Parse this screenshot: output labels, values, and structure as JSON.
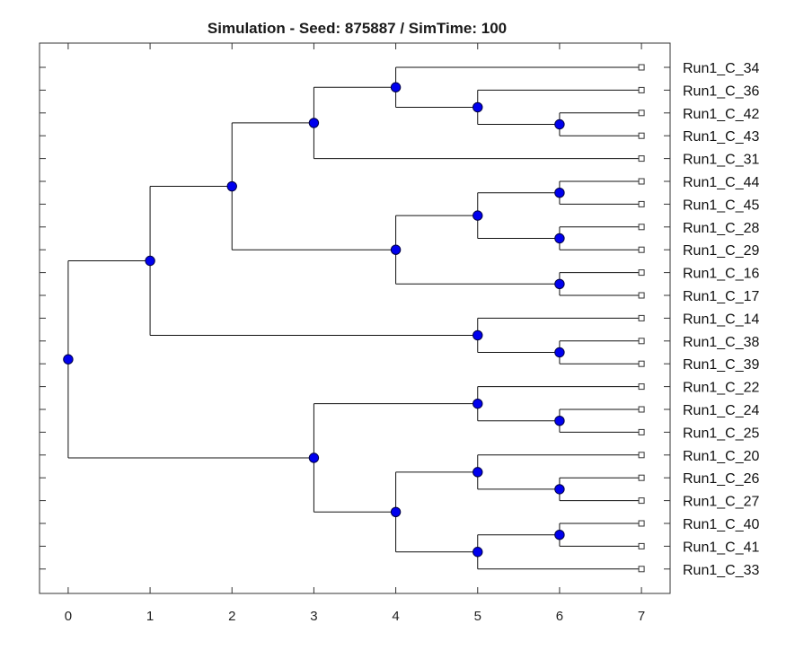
{
  "figure": {
    "title": "Simulation - Seed: 875887 / SimTime: 100"
  },
  "chart_data": {
    "type": "dendrogram",
    "title": "Simulation - Seed: 875887 / SimTime: 100",
    "x_ticks": [
      "0",
      "1",
      "2",
      "3",
      "4",
      "5",
      "6",
      "7"
    ],
    "xlim": [
      -0.35,
      7.35
    ],
    "leaves": [
      "Run1_C_34",
      "Run1_C_36",
      "Run1_C_42",
      "Run1_C_43",
      "Run1_C_31",
      "Run1_C_44",
      "Run1_C_45",
      "Run1_C_28",
      "Run1_C_29",
      "Run1_C_16",
      "Run1_C_17",
      "Run1_C_14",
      "Run1_C_38",
      "Run1_C_39",
      "Run1_C_22",
      "Run1_C_24",
      "Run1_C_25",
      "Run1_C_20",
      "Run1_C_26",
      "Run1_C_27",
      "Run1_C_40",
      "Run1_C_41",
      "Run1_C_33"
    ],
    "leaf_depth": 7,
    "tree": {
      "d": 0,
      "c": [
        {
          "d": 1,
          "c": [
            {
              "d": 2,
              "c": [
                {
                  "d": 3,
                  "c": [
                    {
                      "d": 4,
                      "c": [
                        {
                          "leaf": "Run1_C_34"
                        },
                        {
                          "d": 5,
                          "c": [
                            {
                              "leaf": "Run1_C_36"
                            },
                            {
                              "d": 6,
                              "c": [
                                {
                                  "leaf": "Run1_C_42"
                                },
                                {
                                  "leaf": "Run1_C_43"
                                }
                              ]
                            }
                          ]
                        }
                      ]
                    },
                    {
                      "leaf": "Run1_C_31"
                    }
                  ]
                },
                {
                  "d": 4,
                  "c": [
                    {
                      "d": 5,
                      "c": [
                        {
                          "d": 6,
                          "c": [
                            {
                              "leaf": "Run1_C_44"
                            },
                            {
                              "leaf": "Run1_C_45"
                            }
                          ]
                        },
                        {
                          "d": 6,
                          "c": [
                            {
                              "leaf": "Run1_C_28"
                            },
                            {
                              "leaf": "Run1_C_29"
                            }
                          ]
                        }
                      ]
                    },
                    {
                      "d": 6,
                      "c": [
                        {
                          "leaf": "Run1_C_16"
                        },
                        {
                          "leaf": "Run1_C_17"
                        }
                      ]
                    }
                  ]
                }
              ]
            },
            {
              "d": 5,
              "c": [
                {
                  "leaf": "Run1_C_14"
                },
                {
                  "d": 6,
                  "c": [
                    {
                      "leaf": "Run1_C_38"
                    },
                    {
                      "leaf": "Run1_C_39"
                    }
                  ]
                }
              ]
            }
          ]
        },
        {
          "d": 3,
          "c": [
            {
              "d": 5,
              "c": [
                {
                  "leaf": "Run1_C_22"
                },
                {
                  "d": 6,
                  "c": [
                    {
                      "leaf": "Run1_C_24"
                    },
                    {
                      "leaf": "Run1_C_25"
                    }
                  ]
                }
              ]
            },
            {
              "d": 4,
              "c": [
                {
                  "d": 5,
                  "c": [
                    {
                      "leaf": "Run1_C_20"
                    },
                    {
                      "d": 6,
                      "c": [
                        {
                          "leaf": "Run1_C_26"
                        },
                        {
                          "leaf": "Run1_C_27"
                        }
                      ]
                    }
                  ]
                },
                {
                  "d": 5,
                  "c": [
                    {
                      "d": 6,
                      "c": [
                        {
                          "leaf": "Run1_C_40"
                        },
                        {
                          "leaf": "Run1_C_41"
                        }
                      ]
                    },
                    {
                      "leaf": "Run1_C_33"
                    }
                  ]
                }
              ]
            }
          ]
        }
      ]
    },
    "colors": {
      "node": "#0000ee",
      "branch": "#111111",
      "leaf_marker": "#ffffff"
    }
  }
}
